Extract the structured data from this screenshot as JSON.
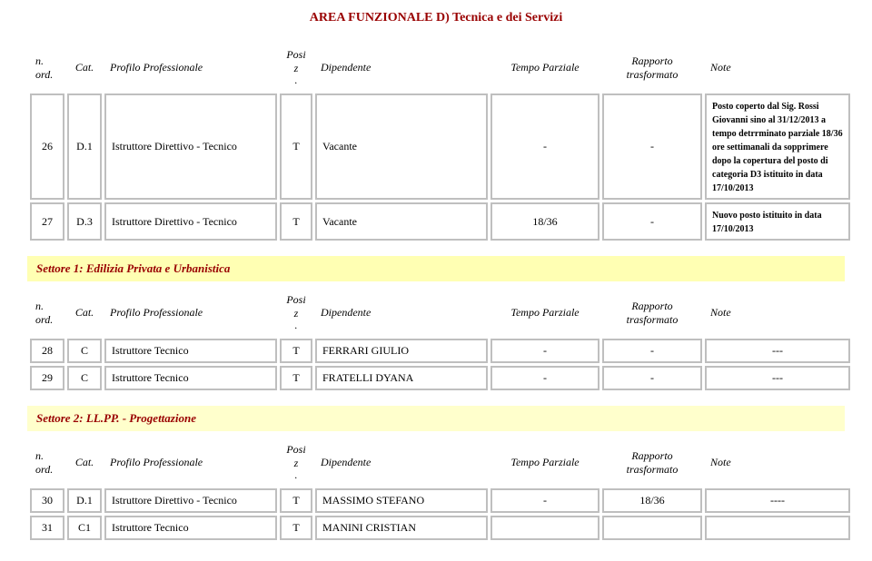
{
  "area_title": "AREA FUNZIONALE D) Tecnica e dei Servizi",
  "header": {
    "n_ord": "n. ord.",
    "cat": "Cat.",
    "prof": "Profilo Professionale",
    "posiz_top": "Posiz",
    "posiz_bot": ".",
    "dip": "Dipendente",
    "tp": "Tempo Parziale",
    "rt": "Rapporto trasformato",
    "note": "Note"
  },
  "table1": [
    {
      "n": "26",
      "cat": "D.1",
      "prof": "Istruttore Direttivo - Tecnico",
      "posiz": "T",
      "dip": "Vacante",
      "tp": "-",
      "rt": "-",
      "note": "Posto coperto dal Sig. Rossi Giovanni sino al 31/12/2013 a tempo detrrminato parziale 18/36 ore settimanali da sopprimere dopo la copertura del posto di categoria D3 istituito in data 17/10/2013"
    },
    {
      "n": "27",
      "cat": "D.3",
      "prof": "Istruttore Direttivo - Tecnico",
      "posiz": "T",
      "dip": "Vacante",
      "tp": "18/36",
      "rt": "-",
      "note": "Nuovo posto istituito in data 17/10/2013"
    }
  ],
  "sector1_title": "Settore 1: Edilizia Privata e Urbanistica",
  "table2": [
    {
      "n": "28",
      "cat": "C",
      "prof": "Istruttore Tecnico",
      "posiz": "T",
      "dip": "FERRARI GIULIO",
      "tp": "-",
      "rt": "-",
      "note": "---"
    },
    {
      "n": "29",
      "cat": "C",
      "prof": "Istruttore Tecnico",
      "posiz": "T",
      "dip": "FRATELLI DYANA",
      "tp": "-",
      "rt": "-",
      "note": "---"
    }
  ],
  "sector2_title": "Settore 2: LL.PP. - Progettazione",
  "table3": [
    {
      "n": "30",
      "cat": "D.1",
      "prof": "Istruttore Direttivo - Tecnico",
      "posiz": "T",
      "dip": "MASSIMO STEFANO",
      "tp": "-",
      "rt": "18/36",
      "note": "----"
    },
    {
      "n": "31",
      "cat": "C1",
      "prof": "Istruttore Tecnico",
      "posiz": "T",
      "dip": "MANINI CRISTIAN",
      "tp": "",
      "rt": "",
      "note": ""
    }
  ],
  "colors": {
    "brand_text": "#990000",
    "banner_yellow": "#ffffb3",
    "banner_lightyellow": "#ffffcc",
    "cell_border": "#bfbfbf",
    "page_bg": "#ffffff"
  }
}
